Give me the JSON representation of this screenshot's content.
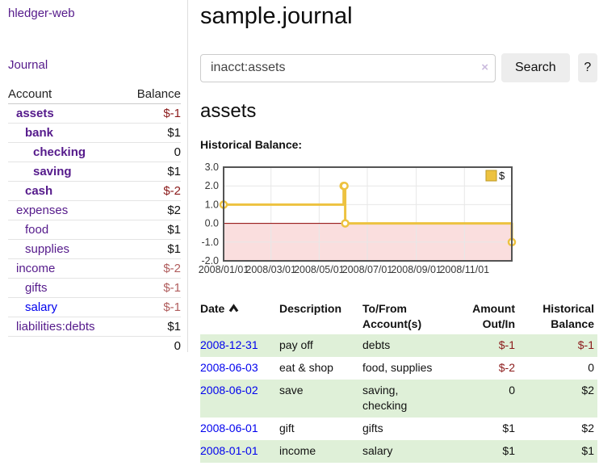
{
  "colors": {
    "link_visited_purple": "#551A8B",
    "link_blue": "#0000EE",
    "negative_strong": "#8B1A1A",
    "negative_soft": "#B05D5D",
    "row_stripe_green": "#DFF0D8",
    "chart_line_gold": "#EDC240",
    "chart_negative_fill": "#FADEDE",
    "chart_zero_line": "#8B0000"
  },
  "sidebar": {
    "brand": "hledger-web",
    "journal_link": "Journal",
    "accounts": {
      "header_account": "Account",
      "header_balance": "Balance",
      "rows": [
        {
          "name": "assets",
          "balance": "$-1",
          "row_class": "lvl0 bold",
          "link_class": "purple",
          "val_class": "neg-strong"
        },
        {
          "name": "bank",
          "balance": "$1",
          "row_class": "lvl1 bold",
          "link_class": "purple",
          "val_class": ""
        },
        {
          "name": "checking",
          "balance": "0",
          "row_class": "lvl2 bold",
          "link_class": "purple",
          "val_class": ""
        },
        {
          "name": "saving",
          "balance": "$1",
          "row_class": "lvl2 bold",
          "link_class": "purple",
          "val_class": ""
        },
        {
          "name": "cash",
          "balance": "$-2",
          "row_class": "lvl1 bold",
          "link_class": "purple",
          "val_class": "neg-strong"
        },
        {
          "name": "expenses",
          "balance": "$2",
          "row_class": "lvl0",
          "link_class": "purple",
          "val_class": ""
        },
        {
          "name": "food",
          "balance": "$1",
          "row_class": "lvl1",
          "link_class": "purple",
          "val_class": ""
        },
        {
          "name": "supplies",
          "balance": "$1",
          "row_class": "lvl1",
          "link_class": "purple",
          "val_class": ""
        },
        {
          "name": "income",
          "balance": "$-2",
          "row_class": "lvl0",
          "link_class": "purple",
          "val_class": "neg-soft"
        },
        {
          "name": "gifts",
          "balance": "$-1",
          "row_class": "lvl1",
          "link_class": "purple",
          "val_class": "neg-soft"
        },
        {
          "name": "salary",
          "balance": "$-1",
          "row_class": "lvl1",
          "link_class": "blue",
          "val_class": "neg-soft"
        },
        {
          "name": "liabilities:debts",
          "balance": "$1",
          "row_class": "lvl0",
          "link_class": "purple",
          "val_class": ""
        }
      ],
      "total": "0"
    }
  },
  "main": {
    "title": "sample.journal",
    "search": {
      "value": "inacct:assets",
      "clear_icon": "×",
      "search_button": "Search",
      "help_button": "?"
    },
    "account_heading": "assets",
    "chart_heading": "Historical Balance:"
  },
  "chart_data": {
    "type": "line",
    "subtype": "step",
    "title": "Historical Balance",
    "series": [
      {
        "name": "$",
        "color": "#EDC240",
        "points": [
          [
            "2008-01-01",
            1
          ],
          [
            "2008-06-01",
            2
          ],
          [
            "2008-06-02",
            2
          ],
          [
            "2008-06-03",
            0
          ],
          [
            "2008-12-31",
            -1
          ]
        ]
      }
    ],
    "x_range": [
      "2008-01-01",
      "2008-12-31"
    ],
    "ylim": [
      -2,
      3
    ],
    "y_ticks": [
      3,
      2,
      1,
      0,
      -1,
      -2
    ],
    "y_tick_labels": [
      "3.0",
      "2.0",
      "1.0",
      "0.0",
      "-1.0",
      "-2.0"
    ],
    "x_ticks": [
      {
        "date": "2008-01-01",
        "label": "2008/01/01"
      },
      {
        "date": "2008-03-01",
        "label": "2008/03/01"
      },
      {
        "date": "2008-05-01",
        "label": "2008/05/01"
      },
      {
        "date": "2008-07-01",
        "label": "2008/07/01"
      },
      {
        "date": "2008-09-01",
        "label": "2008/09/01"
      },
      {
        "date": "2008-11-01",
        "label": "2008/11/01"
      }
    ],
    "grid": true,
    "legend": {
      "label": "$",
      "position": "top-right",
      "swatch_color": "#EDC240"
    },
    "negative_region_color": "#FADEDE",
    "zero_line_color": "#8B0000"
  },
  "register": {
    "headers": {
      "date": "Date",
      "description": "Description",
      "accounts": "To/From Account(s)",
      "amount": "Amount Out/In",
      "balance": "Historical Balance"
    },
    "rows": [
      {
        "date": "2008-12-31",
        "description": "pay off",
        "accounts": "debts",
        "amount": "$-1",
        "balance": "$-1",
        "amount_class": "neg",
        "balance_class": "neg"
      },
      {
        "date": "2008-06-03",
        "description": "eat & shop",
        "accounts": "food, supplies",
        "amount": "$-2",
        "balance": "0",
        "amount_class": "neg",
        "balance_class": ""
      },
      {
        "date": "2008-06-02",
        "description": "save",
        "accounts": "saving, checking",
        "amount": "0",
        "balance": "$2",
        "amount_class": "",
        "balance_class": ""
      },
      {
        "date": "2008-06-01",
        "description": "gift",
        "accounts": "gifts",
        "amount": "$1",
        "balance": "$2",
        "amount_class": "",
        "balance_class": ""
      },
      {
        "date": "2008-01-01",
        "description": "income",
        "accounts": "salary",
        "amount": "$1",
        "balance": "$1",
        "amount_class": "",
        "balance_class": ""
      }
    ]
  }
}
